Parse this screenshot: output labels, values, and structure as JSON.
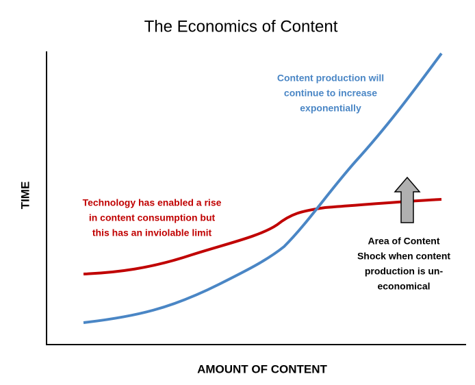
{
  "title": "The Economics of Content",
  "axes": {
    "x_label": "AMOUNT OF CONTENT",
    "y_label": "TIME"
  },
  "annotations": {
    "production": [
      "Content production will",
      "continue to increase",
      "exponentially"
    ],
    "consumption": [
      "Technology has enabled a rise",
      "in content consumption but",
      "this has an inviolable limit"
    ],
    "shock": [
      "Area of Content",
      "Shock when content",
      "production is un-",
      "economical"
    ]
  }
}
